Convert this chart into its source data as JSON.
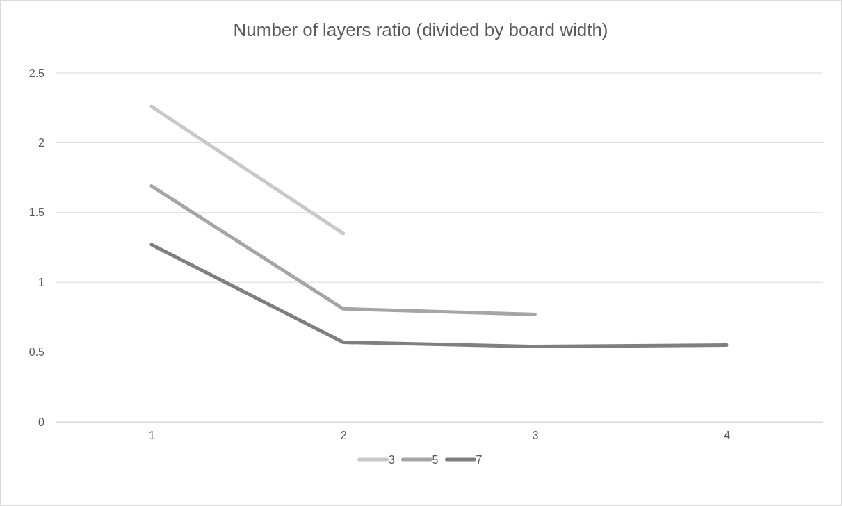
{
  "chart_data": {
    "type": "line",
    "title": "Number of layers ratio (divided by board width)",
    "categories": [
      "1",
      "2",
      "3",
      "4"
    ],
    "series": [
      {
        "name": "3",
        "color": "#c8c8c8",
        "values": [
          2.26,
          1.35,
          null,
          null
        ]
      },
      {
        "name": "5",
        "color": "#a5a5a5",
        "values": [
          1.69,
          0.81,
          0.77,
          null
        ]
      },
      {
        "name": "7",
        "color": "#7f7f7f",
        "values": [
          1.27,
          0.57,
          0.54,
          0.55
        ]
      }
    ],
    "ylim": [
      0,
      2.5
    ],
    "yticks": [
      0,
      0.5,
      1,
      1.5,
      2,
      2.5
    ],
    "grid": "y",
    "legend": "bottom",
    "marker": "none",
    "line_style": "solid"
  }
}
